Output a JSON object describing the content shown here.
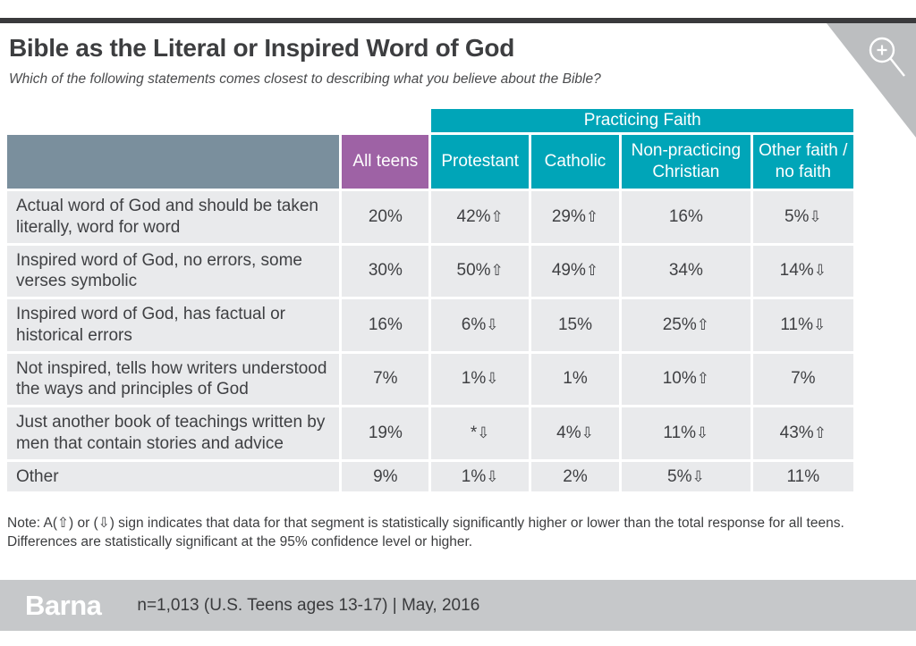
{
  "header": {
    "title": "Bible as the Literal or Inspired Word of God",
    "subtitle": "Which of the following statements comes closest to describing what you believe about the Bible?"
  },
  "tools": {
    "zoom_icon": "magnifier-plus"
  },
  "chart_data": {
    "type": "table",
    "title": "Bible as the Literal or Inspired Word of God",
    "question": "Which of the following statements comes closest to describing what you believe about the Bible?",
    "column_group": {
      "label": "Practicing Faith",
      "spans": [
        "Protestant",
        "Catholic",
        "Non-practicing Christian",
        "Other faith / no faith"
      ]
    },
    "columns": [
      "All teens",
      "Protestant",
      "Catholic",
      "Non-practicing Christian",
      "Other faith / no faith"
    ],
    "rows": [
      {
        "label": "Actual word of God and should be taken literally, word for word",
        "values": [
          "20%",
          "42%⇧",
          "29%⇧",
          "16%",
          "5%⇩"
        ]
      },
      {
        "label": "Inspired word of God, no errors, some verses symbolic",
        "values": [
          "30%",
          "50%⇧",
          "49%⇧",
          "34%",
          "14%⇩"
        ]
      },
      {
        "label": "Inspired word of God, has factual or historical errors",
        "values": [
          "16%",
          "6%⇩",
          "15%",
          "25%⇧",
          "11%⇩"
        ]
      },
      {
        "label": "Not inspired, tells how writers understood the ways and principles of God",
        "values": [
          "7%",
          "1%⇩",
          "1%",
          "10%⇧",
          "7%"
        ]
      },
      {
        "label": "Just another book of teachings written by men that contain stories and advice",
        "values": [
          "19%",
          "*⇩",
          "4%⇩",
          "11%⇩",
          "43%⇧"
        ]
      },
      {
        "label": "Other",
        "values": [
          "9%",
          "1%⇩",
          "2%",
          "5%⇩",
          "11%"
        ]
      }
    ],
    "significance_arrows": {
      "up": "⇧",
      "down": "⇩"
    }
  },
  "note": "Note: A(⇧) or (⇩) sign indicates that data for that segment is statistically significantly higher or lower than the total response for all teens. Differences are statistically significant at the 95% confidence level or higher.",
  "footer": {
    "brand": "Barna",
    "sample": "n=1,013 (U.S. Teens ages 13-17) | May, 2016"
  },
  "colors": {
    "teal": "#00a5b8",
    "purple": "#9e62a5",
    "slate": "#7a8f9d",
    "row_bg": "#e9eaec",
    "footer_gray": "#c6c8ca",
    "top_bar": "#3a3a3c",
    "corner_gray": "#bcbec0",
    "text": "#3f4043"
  }
}
